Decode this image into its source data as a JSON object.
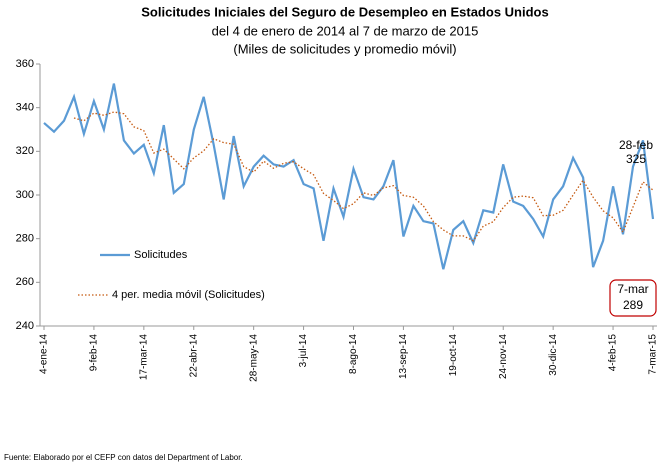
{
  "chart_data": {
    "type": "line",
    "title": "Solicitudes Iniciales del Seguro de Desempleo en Estados Unidos",
    "subtitle": [
      "del 4 de enero de 2014 al 7 de marzo de 2015",
      "(Miles de solicitudes y promedio móvil)"
    ],
    "source": "Fuente: Elaborado por el CEFP con datos del Department of Labor.",
    "categories": [
      "4-ene-14",
      null,
      null,
      null,
      null,
      "9-feb-14",
      null,
      null,
      null,
      null,
      "17-mar-14",
      null,
      null,
      null,
      null,
      "22-abr-14",
      null,
      null,
      null,
      null,
      null,
      "28-may-14",
      null,
      null,
      null,
      null,
      "3-jul-14",
      null,
      null,
      null,
      null,
      "8-ago-14",
      null,
      null,
      null,
      null,
      "13-sep-14",
      null,
      null,
      null,
      null,
      "19-oct-14",
      null,
      null,
      null,
      null,
      "24-nov-14",
      null,
      null,
      null,
      null,
      "30-dic-14",
      null,
      null,
      null,
      null,
      null,
      "4-feb-15",
      null,
      null,
      null,
      "7-mar-15"
    ],
    "series": [
      {
        "name": "Solicitudes",
        "color": "#5b9bd5",
        "style": "solid",
        "values": [
          333,
          329,
          334,
          345,
          328,
          343,
          330,
          351,
          325,
          319,
          323,
          310,
          332,
          301,
          305,
          330,
          345,
          323,
          298,
          327,
          304,
          313,
          318,
          314,
          313,
          316,
          305,
          303,
          279,
          303,
          290,
          312,
          299,
          298,
          304,
          316,
          281,
          295,
          288,
          287,
          266,
          284,
          288,
          278,
          293,
          292,
          314,
          297,
          295,
          289,
          281,
          298,
          304,
          317,
          308,
          267,
          279,
          304,
          282,
          313,
          325,
          289
        ]
      },
      {
        "name": "4 per. media móvil (Solicitudes)",
        "color": "#c55a11",
        "style": "dotted",
        "values": [
          null,
          null,
          null,
          335.25,
          334,
          337.5,
          336.5,
          338,
          337.25,
          331.25,
          329.5,
          319.25,
          321,
          316.5,
          312,
          317,
          320.25,
          325.75,
          324,
          323.25,
          313,
          310.5,
          315.5,
          312.25,
          314.5,
          315.25,
          312,
          309.25,
          300.75,
          297.5,
          293.75,
          296,
          301,
          299.75,
          303.25,
          304.25,
          299.75,
          299,
          295,
          287.75,
          284,
          281.25,
          281.25,
          279,
          285.75,
          287.75,
          294.25,
          299,
          299.5,
          298.75,
          290.5,
          290.75,
          293,
          300,
          306.75,
          299,
          292.75,
          289.5,
          283,
          294.5,
          306,
          302.25
        ]
      }
    ],
    "annotations": [
      {
        "text": "28-feb",
        "value": 325
      },
      {
        "text": "7-mar",
        "value": 289
      }
    ],
    "ylim": [
      240,
      360
    ],
    "yticks": [
      240,
      260,
      280,
      300,
      320,
      340,
      360
    ],
    "grid": false,
    "legend": "left"
  }
}
